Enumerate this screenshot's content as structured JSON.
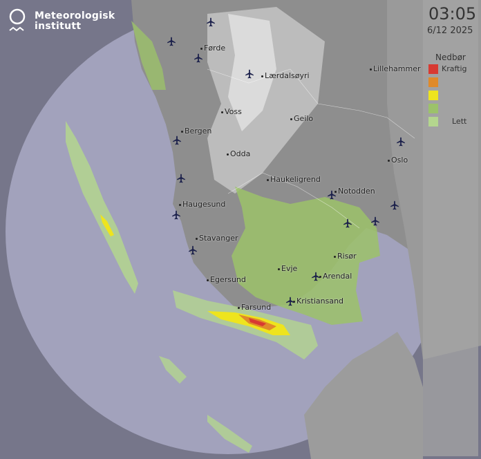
{
  "logo": {
    "name_line1": "Meteorologisk",
    "name_line2": "institutt"
  },
  "timestamp": {
    "time": "03:05",
    "date": "6/12 2025"
  },
  "legend": {
    "title": "Nedbør",
    "levels": [
      {
        "color": "#d83a32",
        "label": "Kraftig"
      },
      {
        "color": "#e08a2a",
        "label": ""
      },
      {
        "color": "#eee41e",
        "label": ""
      },
      {
        "color": "#9cc26a",
        "label": ""
      },
      {
        "color": "#b4d68e",
        "label": "Lett"
      }
    ]
  },
  "cities": [
    "Førde",
    "Lærdalsøyri",
    "Lillehammer",
    "Voss",
    "Geilo",
    "Bergen",
    "Odda",
    "Oslo",
    "Haukeligrend",
    "Notodden",
    "Haugesund",
    "Stavanger",
    "Risør",
    "Evje",
    "Arendal",
    "Egersund",
    "Kristiansand",
    "Farsund"
  ],
  "icons": {
    "airport": "airplane-icon",
    "logo": "met-logo-icon"
  }
}
